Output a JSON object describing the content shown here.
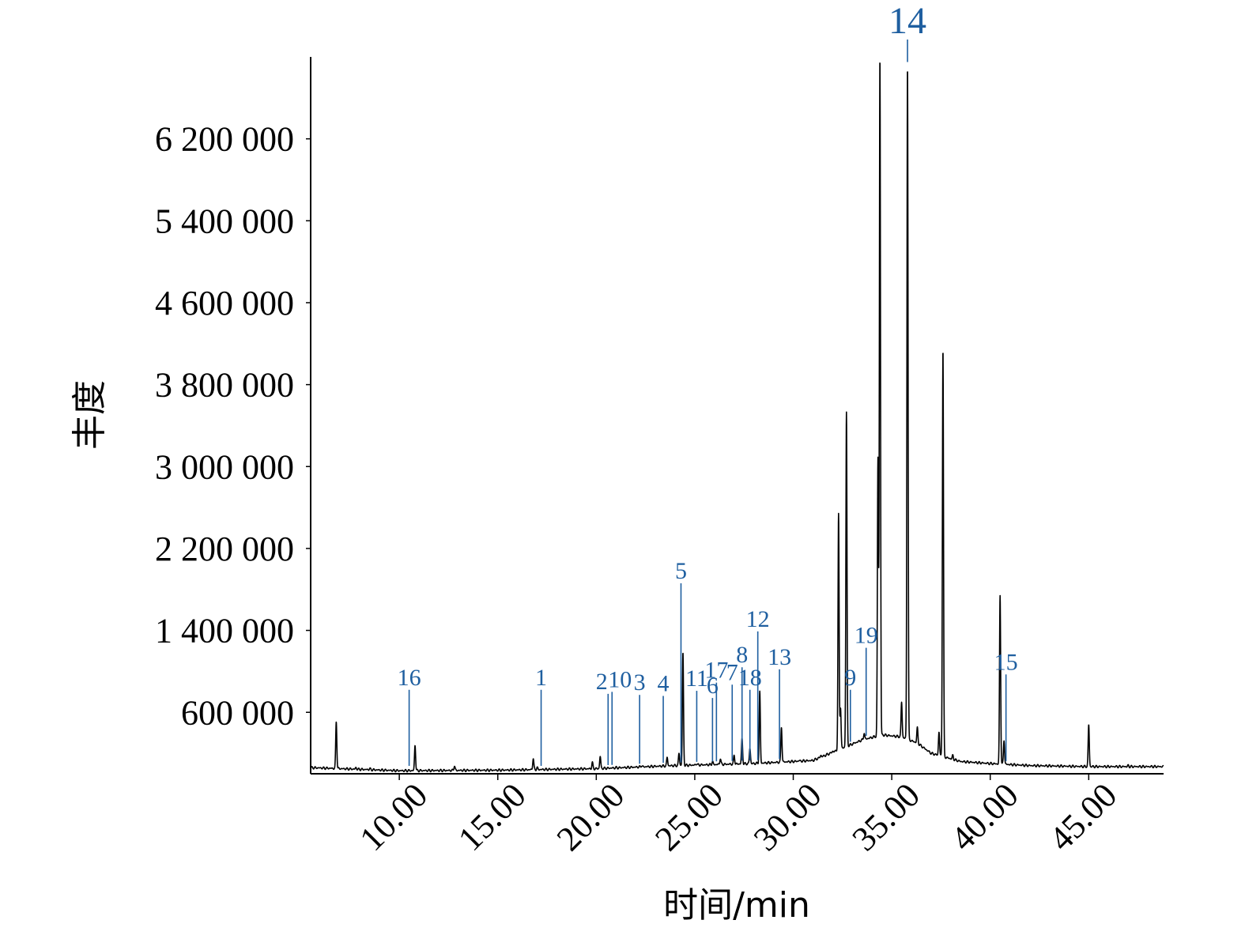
{
  "chart_data": {
    "type": "line",
    "title": "",
    "xlabel": "时间/min",
    "ylabel": "丰度",
    "xlim": [
      5.5,
      48.8
    ],
    "ylim": [
      0,
      7000000
    ],
    "x_ticks": [
      10.0,
      15.0,
      20.0,
      25.0,
      30.0,
      35.0,
      40.0,
      45.0
    ],
    "x_tick_labels": [
      "10.00",
      "15.00",
      "20.00",
      "25.00",
      "30.00",
      "35.00",
      "40.00",
      "45.00"
    ],
    "y_ticks": [
      600000,
      1400000,
      2200000,
      3000000,
      3800000,
      4600000,
      5400000,
      6200000
    ],
    "y_tick_labels": [
      "600 000",
      "1 400 000",
      "2 200 000",
      "3 000 000",
      "3 800 000",
      "4 600 000",
      "5 400 000",
      "6 200 000"
    ],
    "grid": false,
    "series": [
      {
        "baseline": [
          [
            5.5,
            60000
          ],
          [
            10,
            30000
          ],
          [
            15,
            35000
          ],
          [
            20,
            50000
          ],
          [
            24,
            80000
          ],
          [
            28,
            100000
          ],
          [
            31,
            130000
          ],
          [
            32.5,
            250000
          ],
          [
            33.5,
            330000
          ],
          [
            34.5,
            380000
          ],
          [
            35.5,
            360000
          ],
          [
            36.3,
            300000
          ],
          [
            37.0,
            200000
          ],
          [
            38.5,
            120000
          ],
          [
            40.0,
            100000
          ],
          [
            42.0,
            80000
          ],
          [
            45.0,
            70000
          ],
          [
            48.8,
            70000
          ]
        ],
        "peaks": [
          [
            6.8,
            510000
          ],
          [
            7.8,
            60000
          ],
          [
            8.5,
            50000
          ],
          [
            10.8,
            280000
          ],
          [
            12.8,
            80000
          ],
          [
            16.8,
            150000
          ],
          [
            17.0,
            60000
          ],
          [
            19.8,
            110000
          ],
          [
            20.2,
            170000
          ],
          [
            21.0,
            60000
          ],
          [
            22.3,
            80000
          ],
          [
            23.6,
            160000
          ],
          [
            24.2,
            200000
          ],
          [
            24.4,
            1180000
          ],
          [
            25.1,
            100000
          ],
          [
            25.9,
            120000
          ],
          [
            26.3,
            150000
          ],
          [
            27.0,
            180000
          ],
          [
            27.4,
            340000
          ],
          [
            27.8,
            250000
          ],
          [
            28.3,
            800000
          ],
          [
            29.4,
            460000
          ],
          [
            30.3,
            130000
          ],
          [
            31.4,
            180000
          ],
          [
            32.0,
            220000
          ],
          [
            32.3,
            2530000
          ],
          [
            32.4,
            650000
          ],
          [
            32.7,
            3530000
          ],
          [
            33.1,
            300000
          ],
          [
            33.6,
            400000
          ],
          [
            34.3,
            3080000
          ],
          [
            34.4,
            7000000
          ],
          [
            35.5,
            700000
          ],
          [
            35.8,
            6930000
          ],
          [
            36.3,
            450000
          ],
          [
            37.4,
            410000
          ],
          [
            37.6,
            4150000
          ],
          [
            38.1,
            180000
          ],
          [
            40.5,
            1740000
          ],
          [
            40.7,
            330000
          ],
          [
            45.0,
            480000
          ],
          [
            47.0,
            80000
          ]
        ]
      }
    ],
    "peak_annotations": [
      {
        "label": "16",
        "x": 10.5,
        "tip": 820000
      },
      {
        "label": "1",
        "x": 17.2,
        "tip": 820000
      },
      {
        "label": "2",
        "x": 20.6,
        "tip": 780000
      },
      {
        "label": "10",
        "x": 20.8,
        "tip": 800000
      },
      {
        "label": "3",
        "x": 22.2,
        "tip": 770000
      },
      {
        "label": "4",
        "x": 23.4,
        "tip": 760000
      },
      {
        "label": "5",
        "x": 24.3,
        "tip": 1860000
      },
      {
        "label": "11",
        "x": 25.1,
        "tip": 810000
      },
      {
        "label": "6",
        "x": 25.9,
        "tip": 740000
      },
      {
        "label": "17",
        "x": 26.1,
        "tip": 890000
      },
      {
        "label": "7",
        "x": 26.9,
        "tip": 870000
      },
      {
        "label": "8",
        "x": 27.4,
        "tip": 1040000
      },
      {
        "label": "18",
        "x": 27.8,
        "tip": 820000
      },
      {
        "label": "12",
        "x": 28.2,
        "tip": 1390000
      },
      {
        "label": "13",
        "x": 29.3,
        "tip": 1020000
      },
      {
        "label": "9",
        "x": 32.9,
        "tip": 820000
      },
      {
        "label": "19",
        "x": 33.7,
        "tip": 1230000
      },
      {
        "label": "14",
        "x": 35.8,
        "tip": 7000000
      },
      {
        "label": "15",
        "x": 40.8,
        "tip": 970000
      }
    ]
  }
}
